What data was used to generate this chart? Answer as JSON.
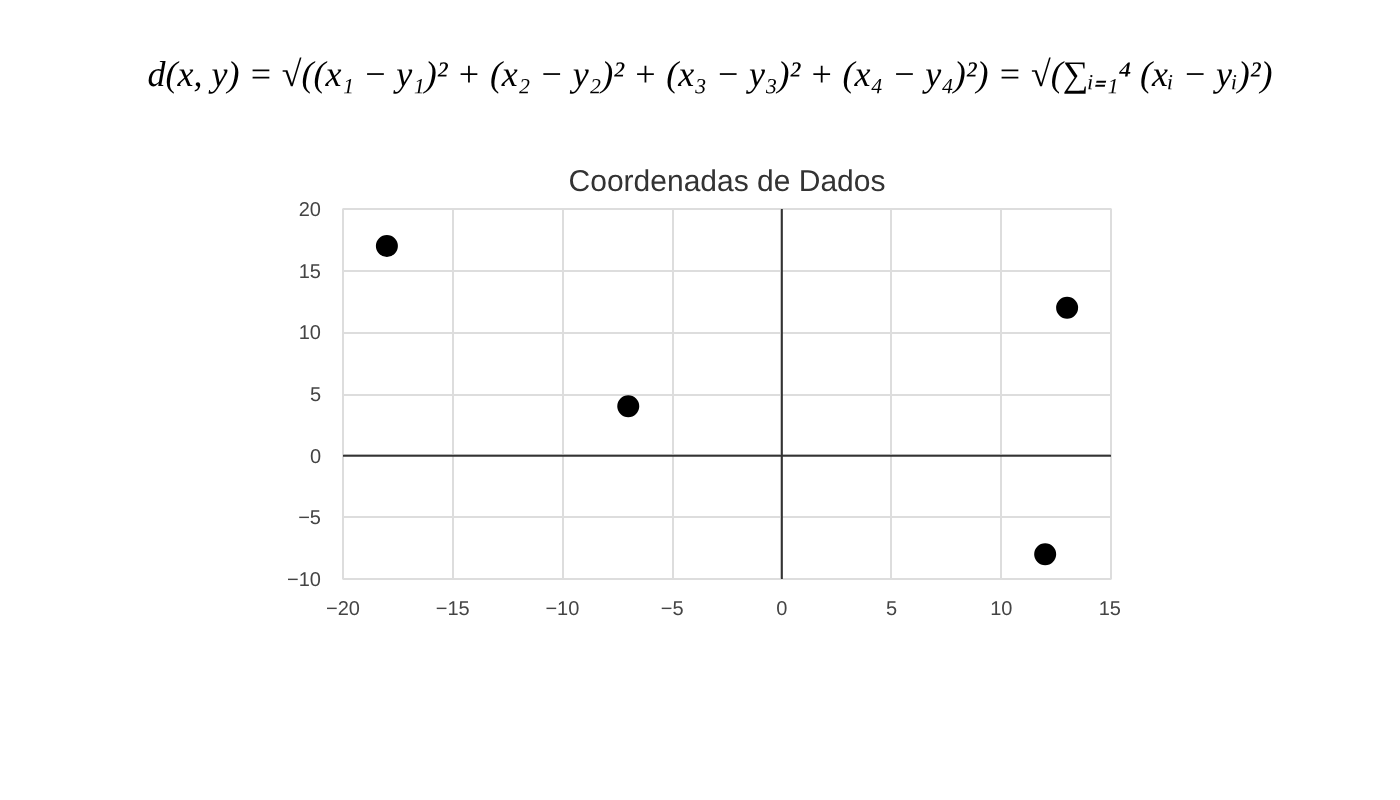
{
  "chart_data": {
    "type": "scatter",
    "title": "Coordenadas de Dados",
    "annotations": [
      "d(x, y) = √((x₁ − y₁)² + (x₂ − y₂)² + (x₃ − y₃)² + (x₄ − y₄)²) = √(∑ᵢ₌₁⁴ (xᵢ − yᵢ)²)"
    ],
    "x": [
      -18,
      -7,
      13,
      12
    ],
    "values": [
      17,
      4,
      12,
      -8
    ],
    "color": "#000000",
    "marker": "circle",
    "xlim": [
      -20,
      15
    ],
    "ylim": [
      -10,
      20
    ],
    "xticks": [
      -20,
      -15,
      -10,
      -5,
      0,
      5,
      10,
      15
    ],
    "yticks": [
      -10,
      -5,
      0,
      5,
      10,
      15,
      20
    ],
    "grid": true
  }
}
